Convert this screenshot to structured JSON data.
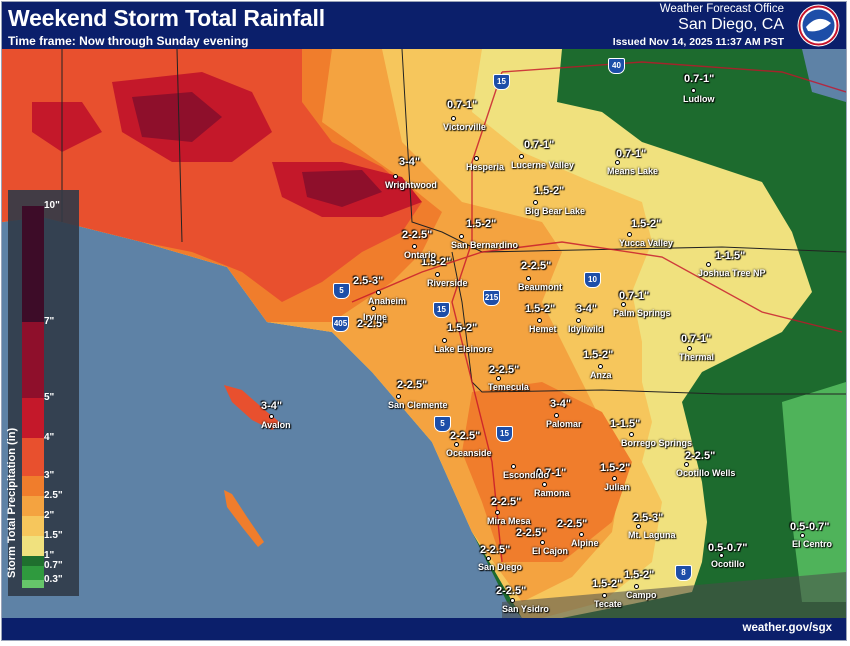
{
  "header": {
    "title": "Weekend Storm Total Rainfall",
    "timeframe": "Time frame: Now through Sunday evening",
    "office_label": "Weather Forecast Office",
    "office_city": "San Diego, CA",
    "issued": "Issued Nov 14, 2025 11:37 AM PST",
    "logo_icon": "noaa-nws-logo-icon"
  },
  "footer": {
    "website": "weather.gov/sgx"
  },
  "legend": {
    "title": "Storm Total Precipitation (in)",
    "ticks": [
      "10\"",
      "7\"",
      "5\"",
      "4\"",
      "3\"",
      "2.5\"",
      "2\"",
      "1.5\"",
      "1\"",
      "0.7\"",
      "0.3\""
    ],
    "bins": [
      {
        "from": "7\"",
        "to": "10\"",
        "color": "#3d0c28"
      },
      {
        "from": "5\"",
        "to": "7\"",
        "color": "#8e0f2b"
      },
      {
        "from": "4\"",
        "to": "5\"",
        "color": "#c4182a"
      },
      {
        "from": "3\"",
        "to": "4\"",
        "color": "#e8502e"
      },
      {
        "from": "2.5\"",
        "to": "3\"",
        "color": "#f07d2c"
      },
      {
        "from": "2\"",
        "to": "2.5\"",
        "color": "#f4a340"
      },
      {
        "from": "1.5\"",
        "to": "2\"",
        "color": "#f6c65c"
      },
      {
        "from": "1\"",
        "to": "1.5\"",
        "color": "#f0e17e"
      },
      {
        "from": "0.7\"",
        "to": "1\"",
        "color": "#1f6f2e"
      },
      {
        "from": "0.3\"",
        "to": "0.7\"",
        "color": "#2f9a3e"
      },
      {
        "from": "0\"",
        "to": "0.3\"",
        "color": "#66c56a"
      }
    ]
  },
  "highways": [
    "15",
    "40",
    "10",
    "5",
    "405",
    "15",
    "215",
    "15",
    "5",
    "8"
  ],
  "rainfall_labels": [
    "0.7-1\"",
    "0.7-1\"",
    "0.7-1\"",
    "0.7-1\"",
    "3-4\"",
    "1.5-2\"",
    "1.5-2\"",
    "1.5-2\"",
    "2-2.5\"",
    "1.5-2\"",
    "1-1.5\"",
    "2-2.5\"",
    "2.5-3\"",
    "1.5-2\"",
    "3-4\"",
    "0.7-1\"",
    "2-2.5\"",
    "1.5-2\"",
    "0.7-1\"",
    "2-2.5\"",
    "1.5-2\"",
    "2-2.5\"",
    "3-4\"",
    "2-2.5\"",
    "1-1.5\"",
    "2-2.5\"",
    "0.7-1\"",
    "1.5-2\"",
    "2-2.5\"",
    "2.5-3\"",
    "2-2.5\"",
    "2-2.5\"",
    "0.5-0.7\"",
    "0.5-0.7\"",
    "2-2.5\"",
    "2-2.5\"",
    "1.5-2\"",
    "1.5-2\"",
    "3-4\""
  ],
  "cities": [
    "Victorville",
    "Ludlow",
    "Lucerne Valley",
    "Hesperia",
    "Means Lake",
    "Wrightwood",
    "Big Bear Lake",
    "Yucca Valley",
    "San Bernardino",
    "Ontario",
    "Riverside",
    "Beaumont",
    "Joshua Tree NP",
    "Anaheim",
    "Palm Springs",
    "Irvine",
    "Hemet",
    "Idyllwild",
    "Lake Elsinore",
    "Thermal",
    "Temecula",
    "Anza",
    "San Clemente",
    "Palomar",
    "Borrego Springs",
    "Oceanside",
    "Escondido",
    "Ocotillo Wells",
    "Ramona",
    "Julian",
    "Mira Mesa",
    "Alpine",
    "El Cajon",
    "Mt. Laguna",
    "San Diego",
    "Ocotillo",
    "El Centro",
    "San Ysidro",
    "Tecate",
    "Campo",
    "Avalon"
  ]
}
